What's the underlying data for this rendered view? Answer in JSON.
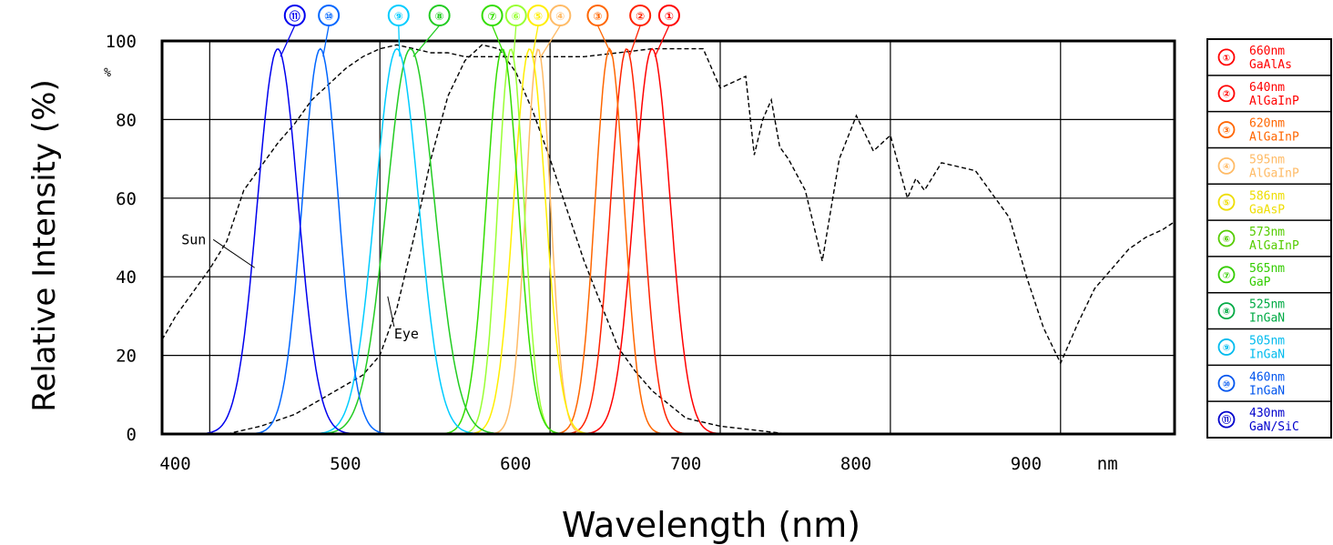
{
  "chart_data": {
    "type": "line",
    "title": "",
    "xlabel": "Wavelength (nm)",
    "ylabel": "Relative Intensity (%)",
    "y_unit_label": "%",
    "x_unit_label": "nm",
    "xlim": [
      372,
      967
    ],
    "ylim": [
      0,
      100
    ],
    "x_ticks": [
      {
        "value": 400,
        "label": "400"
      },
      {
        "value": 500,
        "label": "500"
      },
      {
        "value": 600,
        "label": "600"
      },
      {
        "value": 700,
        "label": "700"
      },
      {
        "value": 800,
        "label": "800"
      },
      {
        "value": 900,
        "label": "900"
      }
    ],
    "y_ticks": [
      {
        "value": 0,
        "label": "0"
      },
      {
        "value": 20,
        "label": "20"
      },
      {
        "value": 40,
        "label": "40"
      },
      {
        "value": 60,
        "label": "60"
      },
      {
        "value": 80,
        "label": "80"
      },
      {
        "value": 100,
        "label": "100"
      }
    ],
    "grid": true,
    "legend_position": "right",
    "annotations": [
      {
        "text": "Sun",
        "x": 378,
        "y": 49
      },
      {
        "text": "Eye",
        "x": 503,
        "y": 25
      }
    ],
    "led_series": [
      {
        "marker": "①",
        "wavelength_label": "660nm",
        "material": "GaAlAs",
        "peak": 660,
        "width": 25,
        "color": "#ff0000",
        "marker_x": 670
      },
      {
        "marker": "②",
        "wavelength_label": "640nm",
        "material": "AlGaInP",
        "peak": 645,
        "width": 22,
        "color": "#ff2200",
        "marker_x": 653
      },
      {
        "marker": "③",
        "wavelength_label": "620nm",
        "material": "AlGaInP",
        "peak": 635,
        "width": 20,
        "color": "#ff6600",
        "marker_x": 628
      },
      {
        "marker": "④",
        "wavelength_label": "595nm",
        "material": "AlGaInP",
        "peak": 593,
        "width": 17,
        "color": "#ffbb66",
        "marker_x": 606
      },
      {
        "marker": "⑤",
        "wavelength_label": "586nm",
        "material": "GaAsP",
        "peak": 588,
        "width": 22,
        "color": "#ffee00",
        "marker_x": 593
      },
      {
        "marker": "⑥",
        "wavelength_label": "573nm",
        "material": "AlGaInP",
        "peak": 577,
        "width": 18,
        "color": "#99ff33",
        "marker_x": 580
      },
      {
        "marker": "⑦",
        "wavelength_label": "565nm",
        "material": "GaP",
        "peak": 572,
        "width": 22,
        "color": "#33dd00",
        "marker_x": 566
      },
      {
        "marker": "⑧",
        "wavelength_label": "525nm",
        "material": "InGaN",
        "peak": 518,
        "width": 33,
        "color": "#22cc22",
        "marker_x": 535
      },
      {
        "marker": "⑨",
        "wavelength_label": "505nm",
        "material": "InGaN",
        "peak": 510,
        "width": 30,
        "color": "#00ccff",
        "marker_x": 511
      },
      {
        "marker": "⑩",
        "wavelength_label": "460nm",
        "material": "InGaN",
        "peak": 465,
        "width": 25,
        "color": "#0066ff",
        "marker_x": 470
      },
      {
        "marker": "⑪",
        "wavelength_label": "430nm",
        "material": "GaN/SiC",
        "peak": 440,
        "width": 28,
        "color": "#0000ee",
        "marker_x": 450
      }
    ],
    "series": [
      {
        "name": "Sun",
        "style": "dashed",
        "color": "#000000",
        "x": [
          372,
          380,
          390,
          400,
          410,
          420,
          430,
          440,
          450,
          460,
          470,
          480,
          490,
          500,
          510,
          520,
          530,
          540,
          550,
          560,
          570,
          580,
          590,
          600,
          620,
          640,
          660,
          680,
          690,
          700,
          710,
          715,
          720,
          725,
          730,
          735,
          740,
          750,
          760,
          770,
          780,
          790,
          800,
          810,
          815,
          820,
          830,
          850,
          870,
          880,
          890,
          900,
          910,
          920,
          930,
          940,
          950,
          960,
          967
        ],
        "y": [
          24,
          30,
          36,
          42,
          49,
          62,
          68,
          74,
          79,
          85,
          89,
          93,
          96,
          98,
          99,
          98,
          97,
          97,
          96,
          96,
          96,
          96,
          96,
          96,
          96,
          97,
          98,
          98,
          98,
          88,
          90,
          91,
          71,
          80,
          85,
          73,
          70,
          62,
          44,
          70,
          81,
          72,
          76,
          60,
          65,
          62,
          69,
          67,
          55,
          40,
          27,
          18,
          28,
          37,
          42,
          47,
          50,
          52,
          54
        ]
      },
      {
        "name": "Eye",
        "style": "dashed",
        "color": "#000000",
        "x": [
          410,
          430,
          450,
          470,
          490,
          500,
          510,
          520,
          530,
          540,
          550,
          560,
          570,
          580,
          590,
          600,
          610,
          620,
          630,
          640,
          650,
          660,
          680,
          700,
          720,
          740
        ],
        "y": [
          0,
          2,
          5,
          10,
          15,
          20,
          32,
          50,
          70,
          86,
          95,
          99,
          98,
          92,
          82,
          70,
          57,
          44,
          33,
          22,
          16,
          11,
          4,
          2,
          1,
          0
        ]
      }
    ]
  },
  "legend": [
    {
      "marker": "①",
      "line1": "660nm",
      "line2": "GaAlAs",
      "color": "#ff0000"
    },
    {
      "marker": "②",
      "line1": "640nm",
      "line2": "AlGaInP",
      "color": "#ff0000"
    },
    {
      "marker": "③",
      "line1": "620nm",
      "line2": "AlGaInP",
      "color": "#ff6600"
    },
    {
      "marker": "④",
      "line1": "595nm",
      "line2": "AlGaInP",
      "color": "#ffbb66"
    },
    {
      "marker": "⑤",
      "line1": "586nm",
      "line2": "GaAsP",
      "color": "#eedd00"
    },
    {
      "marker": "⑥",
      "line1": "573nm",
      "line2": "AlGaInP",
      "color": "#55cc00"
    },
    {
      "marker": "⑦",
      "line1": "565nm",
      "line2": "GaP",
      "color": "#33cc00"
    },
    {
      "marker": "⑧",
      "line1": "525nm",
      "line2": "InGaN",
      "color": "#00aa44"
    },
    {
      "marker": "⑨",
      "line1": "505nm",
      "line2": "InGaN",
      "color": "#00bbee"
    },
    {
      "marker": "⑩",
      "line1": "460nm",
      "line2": "InGaN",
      "color": "#0055ee"
    },
    {
      "marker": "⑪",
      "line1": "430nm",
      "line2": "GaN/SiC",
      "color": "#0000cc"
    }
  ]
}
